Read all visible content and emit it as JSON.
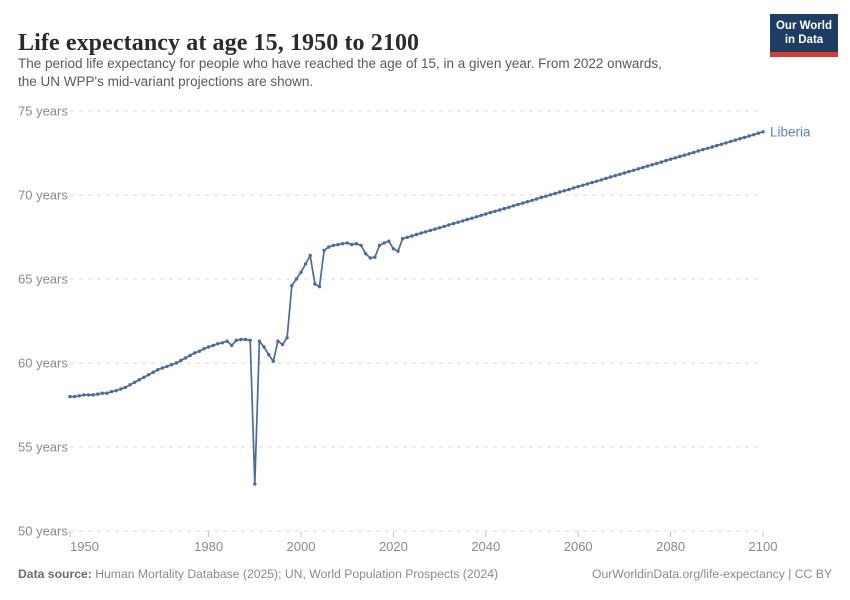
{
  "header": {
    "title": "Life expectancy at age 15, 1950 to 2100",
    "subtitle_line1": "The period life expectancy for people who have reached the age of 15, in a given year. From 2022 onwards,",
    "subtitle_line2": "the UN WPP's mid-variant projections are shown.",
    "logo_line1": "Our World",
    "logo_line2": "in Data"
  },
  "footer": {
    "source_label": "Data source:",
    "source_text": " Human Mortality Database (2025); UN, World Population Prospects (2024)",
    "rights": "OurWorldinData.org/life-expectancy | CC BY"
  },
  "chart_data": {
    "type": "line",
    "title": "Life expectancy at age 15, 1950 to 2100",
    "xlabel": "",
    "ylabel": "",
    "xlim": [
      1950,
      2100
    ],
    "ylim": [
      50,
      75
    ],
    "grid": "horizontal-dashed",
    "legend_position": "line-end-label",
    "x_ticks": [
      1950,
      1980,
      2000,
      2020,
      2040,
      2060,
      2080,
      2100
    ],
    "x_tick_labels": [
      "1950",
      "1980",
      "2000",
      "2020",
      "2040",
      "2060",
      "2080",
      "2100"
    ],
    "y_ticks": [
      50,
      55,
      60,
      65,
      70,
      75
    ],
    "y_tick_labels": [
      "50 years",
      "55 years",
      "60 years",
      "65 years",
      "70 years",
      "75 years"
    ],
    "colors": {
      "line": "#4c6a9c",
      "entity_label": "#5e80b8",
      "grid": "#dcdcdc",
      "axis_text": "#8a8a8a"
    },
    "projection_note": "From 2022 onwards values are UN WPP mid-variant projections",
    "series": [
      {
        "name": "Liberia",
        "points": [
          [
            1950,
            58.0
          ],
          [
            1951,
            58.0
          ],
          [
            1952,
            58.05
          ],
          [
            1953,
            58.1
          ],
          [
            1954,
            58.1
          ],
          [
            1955,
            58.1
          ],
          [
            1956,
            58.15
          ],
          [
            1957,
            58.2
          ],
          [
            1958,
            58.2
          ],
          [
            1959,
            58.3
          ],
          [
            1960,
            58.35
          ],
          [
            1961,
            58.45
          ],
          [
            1962,
            58.55
          ],
          [
            1963,
            58.7
          ],
          [
            1964,
            58.85
          ],
          [
            1965,
            59.0
          ],
          [
            1966,
            59.15
          ],
          [
            1967,
            59.3
          ],
          [
            1968,
            59.45
          ],
          [
            1969,
            59.6
          ],
          [
            1970,
            59.7
          ],
          [
            1971,
            59.8
          ],
          [
            1972,
            59.9
          ],
          [
            1973,
            60.0
          ],
          [
            1974,
            60.15
          ],
          [
            1975,
            60.3
          ],
          [
            1976,
            60.45
          ],
          [
            1977,
            60.6
          ],
          [
            1978,
            60.7
          ],
          [
            1979,
            60.85
          ],
          [
            1980,
            60.95
          ],
          [
            1981,
            61.05
          ],
          [
            1982,
            61.15
          ],
          [
            1983,
            61.2
          ],
          [
            1984,
            61.3
          ],
          [
            1985,
            61.05
          ],
          [
            1986,
            61.35
          ],
          [
            1987,
            61.4
          ],
          [
            1988,
            61.4
          ],
          [
            1989,
            61.35
          ],
          [
            1990,
            52.8
          ],
          [
            1991,
            61.3
          ],
          [
            1992,
            60.95
          ],
          [
            1993,
            60.5
          ],
          [
            1994,
            60.1
          ],
          [
            1995,
            61.3
          ],
          [
            1996,
            61.1
          ],
          [
            1997,
            61.5
          ],
          [
            1998,
            64.6
          ],
          [
            1999,
            65.0
          ],
          [
            2000,
            65.4
          ],
          [
            2001,
            65.9
          ],
          [
            2002,
            66.4
          ],
          [
            2003,
            64.7
          ],
          [
            2004,
            64.55
          ],
          [
            2005,
            66.7
          ],
          [
            2006,
            66.9
          ],
          [
            2007,
            67.0
          ],
          [
            2008,
            67.05
          ],
          [
            2009,
            67.1
          ],
          [
            2010,
            67.15
          ],
          [
            2011,
            67.05
          ],
          [
            2012,
            67.1
          ],
          [
            2013,
            67.0
          ],
          [
            2014,
            66.5
          ],
          [
            2015,
            66.25
          ],
          [
            2016,
            66.3
          ],
          [
            2017,
            67.0
          ],
          [
            2018,
            67.15
          ],
          [
            2019,
            67.25
          ],
          [
            2020,
            66.8
          ],
          [
            2021,
            66.65
          ],
          [
            2022,
            67.4
          ],
          [
            2023,
            67.48
          ],
          [
            2024,
            67.56
          ],
          [
            2025,
            67.65
          ],
          [
            2026,
            67.73
          ],
          [
            2027,
            67.81
          ],
          [
            2028,
            67.89
          ],
          [
            2029,
            67.97
          ],
          [
            2030,
            68.05
          ],
          [
            2031,
            68.13
          ],
          [
            2032,
            68.22
          ],
          [
            2033,
            68.3
          ],
          [
            2034,
            68.38
          ],
          [
            2035,
            68.46
          ],
          [
            2036,
            68.54
          ],
          [
            2037,
            68.62
          ],
          [
            2038,
            68.7
          ],
          [
            2039,
            68.79
          ],
          [
            2040,
            68.87
          ],
          [
            2041,
            68.95
          ],
          [
            2042,
            69.03
          ],
          [
            2043,
            69.11
          ],
          [
            2044,
            69.19
          ],
          [
            2045,
            69.27
          ],
          [
            2046,
            69.36
          ],
          [
            2047,
            69.44
          ],
          [
            2048,
            69.52
          ],
          [
            2049,
            69.6
          ],
          [
            2050,
            69.68
          ],
          [
            2051,
            69.76
          ],
          [
            2052,
            69.85
          ],
          [
            2053,
            69.93
          ],
          [
            2054,
            70.01
          ],
          [
            2055,
            70.09
          ],
          [
            2056,
            70.17
          ],
          [
            2057,
            70.25
          ],
          [
            2058,
            70.33
          ],
          [
            2059,
            70.42
          ],
          [
            2060,
            70.5
          ],
          [
            2061,
            70.58
          ],
          [
            2062,
            70.66
          ],
          [
            2063,
            70.74
          ],
          [
            2064,
            70.82
          ],
          [
            2065,
            70.9
          ],
          [
            2066,
            70.99
          ],
          [
            2067,
            71.07
          ],
          [
            2068,
            71.15
          ],
          [
            2069,
            71.23
          ],
          [
            2070,
            71.31
          ],
          [
            2071,
            71.39
          ],
          [
            2072,
            71.47
          ],
          [
            2073,
            71.56
          ],
          [
            2074,
            71.64
          ],
          [
            2075,
            71.72
          ],
          [
            2076,
            71.8
          ],
          [
            2077,
            71.88
          ],
          [
            2078,
            71.96
          ],
          [
            2079,
            72.05
          ],
          [
            2080,
            72.13
          ],
          [
            2081,
            72.21
          ],
          [
            2082,
            72.29
          ],
          [
            2083,
            72.37
          ],
          [
            2084,
            72.45
          ],
          [
            2085,
            72.53
          ],
          [
            2086,
            72.62
          ],
          [
            2087,
            72.7
          ],
          [
            2088,
            72.78
          ],
          [
            2089,
            72.86
          ],
          [
            2090,
            72.94
          ],
          [
            2091,
            73.02
          ],
          [
            2092,
            73.1
          ],
          [
            2093,
            73.19
          ],
          [
            2094,
            73.27
          ],
          [
            2095,
            73.35
          ],
          [
            2096,
            73.43
          ],
          [
            2097,
            73.51
          ],
          [
            2098,
            73.59
          ],
          [
            2099,
            73.68
          ],
          [
            2100,
            73.76
          ]
        ]
      }
    ]
  }
}
